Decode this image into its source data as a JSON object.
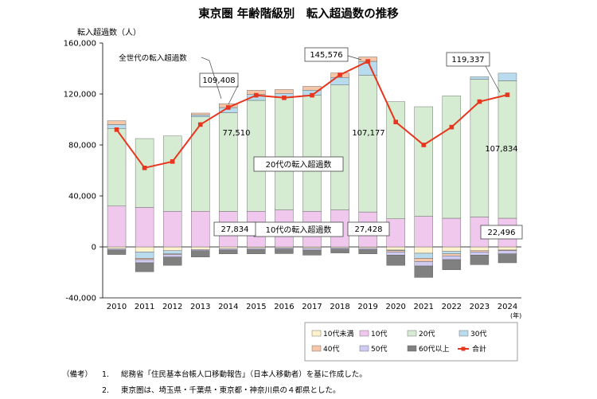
{
  "chart_data": {
    "type": "bar",
    "title": "東京圏 年齢階級別　転入超過数の推移",
    "ylabel": "転入超過数（人）",
    "x_unit": "(年)",
    "ylim": [
      -40000,
      160000
    ],
    "yticks": [
      -40000,
      0,
      40000,
      80000,
      120000,
      160000
    ],
    "ytick_labels": [
      "-40,000",
      "0",
      "40,000",
      "80,000",
      "120,000",
      "160,000"
    ],
    "categories": [
      "2010",
      "2011",
      "2012",
      "2013",
      "2014",
      "2015",
      "2016",
      "2017",
      "2018",
      "2019",
      "2020",
      "2021",
      "2022",
      "2023",
      "2024"
    ],
    "stacked": true,
    "series": [
      {
        "name": "10代未満",
        "color": "#fff2cc",
        "values": [
          -1500,
          -4000,
          -3000,
          -2000,
          -1500,
          -1000,
          -800,
          -1000,
          -800,
          -1000,
          -2500,
          -5000,
          -3500,
          -3000,
          -2500
        ]
      },
      {
        "name": "10代",
        "color": "#f0c8ee",
        "values": [
          32000,
          31000,
          28000,
          28000,
          27834,
          28000,
          29000,
          28000,
          29000,
          27428,
          22000,
          24000,
          22500,
          23500,
          22496
        ]
      },
      {
        "name": "20代",
        "color": "#d5ecd2",
        "values": [
          61000,
          54000,
          59000,
          74000,
          77510,
          87000,
          88000,
          91000,
          98000,
          107177,
          92000,
          86000,
          96000,
          108000,
          107834
        ]
      },
      {
        "name": "30代",
        "color": "#b8dcee",
        "values": [
          3000,
          -5000,
          -2500,
          1500,
          4000,
          4500,
          3500,
          4000,
          6000,
          11000,
          -500,
          -4000,
          -2000,
          2000,
          6000
        ]
      },
      {
        "name": "40代",
        "color": "#f5c7a8",
        "values": [
          3000,
          -1000,
          -500,
          1500,
          3000,
          3500,
          3000,
          3000,
          3500,
          3500,
          -1000,
          -2500,
          -1500,
          -1000,
          -500
        ]
      },
      {
        "name": "50代",
        "color": "#cfcaf0",
        "values": [
          -1000,
          -2500,
          -2000,
          -1000,
          -1000,
          -1000,
          -1000,
          -1500,
          -1000,
          -1000,
          -2500,
          -3500,
          -3000,
          -2500,
          -2500
        ]
      },
      {
        "name": "60代以上",
        "color": "#808080",
        "values": [
          -3500,
          -7000,
          -6500,
          -5000,
          -3000,
          -3500,
          -3500,
          -4000,
          -3000,
          -3500,
          -8000,
          -9000,
          -8000,
          -7500,
          -7000
        ]
      }
    ],
    "total": {
      "name": "合計",
      "color": "#e8361e",
      "values": [
        92000,
        62000,
        67000,
        96000,
        109408,
        119000,
        117000,
        119000,
        135000,
        145576,
        98000,
        80000,
        94000,
        114000,
        119337
      ]
    },
    "annotations": {
      "all_ages": "全世代の転入超過数",
      "band_20s": "20代の転入超過数",
      "band_10s": "10代の転入超過数",
      "labels": [
        {
          "text": "109,408",
          "year": "2014"
        },
        {
          "text": "145,576",
          "year": "2019"
        },
        {
          "text": "119,337",
          "year": "2024"
        },
        {
          "text": "77,510",
          "year": "2014"
        },
        {
          "text": "107,177",
          "year": "2019"
        },
        {
          "text": "107,834",
          "year": "2024"
        },
        {
          "text": "27,834",
          "year": "2014"
        },
        {
          "text": "27,428",
          "year": "2019"
        },
        {
          "text": "22,496",
          "year": "2024"
        }
      ]
    },
    "legend_position": "bottom",
    "grid": false
  },
  "notes": {
    "label": "（備考）",
    "items": [
      {
        "num": "1.",
        "text": "総務省「住民基本台帳人口移動報告」（日本人移動者）を基に作成した。"
      },
      {
        "num": "2.",
        "text": "東京圏は、埼玉県・千葉県・東京都・神奈川県の４都県とした。"
      }
    ]
  }
}
